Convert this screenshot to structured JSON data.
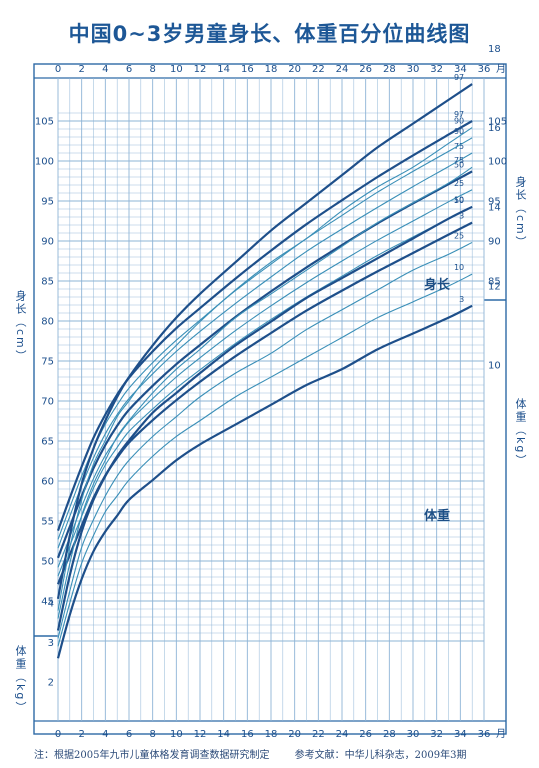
{
  "title": "中国0~3岁男童身长、体重百分位曲线图",
  "note": {
    "source": "注：根据2005年九市儿童体格发育调查数据研究制定",
    "reference": "参考文献：中华儿科杂志，2009年3期"
  },
  "axis_labels": {
    "height_left": "身长（cm）",
    "height_right": "身长（cm）",
    "weight_left": "体重（kg）",
    "weight_right": "体重（kg）",
    "month_unit": "月"
  },
  "curve_labels": {
    "height": "身长",
    "weight": "体重"
  },
  "chart_data": {
    "type": "line",
    "x_ticks": [
      0,
      2,
      4,
      6,
      8,
      10,
      12,
      14,
      16,
      18,
      20,
      22,
      24,
      26,
      28,
      30,
      32,
      34,
      36
    ],
    "xlim": [
      0,
      36
    ],
    "height_axis": {
      "unit": "cm",
      "ylim": [
        40,
        106
      ],
      "ticks": [
        45,
        50,
        55,
        60,
        65,
        70,
        75,
        80,
        85,
        90,
        95,
        100,
        105
      ]
    },
    "weight_axis": {
      "unit": "kg",
      "ylim": [
        1,
        22
      ],
      "ticks_left": [
        2,
        3,
        4
      ],
      "ticks_right": [
        10,
        12,
        14,
        16,
        18,
        20
      ]
    },
    "x": [
      0,
      1,
      2,
      3,
      4,
      5,
      6,
      8,
      10,
      12,
      15,
      18,
      21,
      24,
      27,
      30,
      33,
      35
    ],
    "height_series": [
      {
        "name": "3",
        "values": [
          47.1,
          50.8,
          54.4,
          57.9,
          60.7,
          62.9,
          64.8,
          67.6,
          70.1,
          72.4,
          75.6,
          78.5,
          81.3,
          83.8,
          86.2,
          88.5,
          90.8,
          92.3
        ]
      },
      {
        "name": "10",
        "values": [
          48.1,
          51.9,
          55.6,
          59.1,
          62.0,
          64.2,
          66.2,
          69.0,
          71.6,
          73.9,
          77.2,
          80.2,
          83.0,
          85.6,
          88.2,
          90.5,
          92.8,
          94.3
        ]
      },
      {
        "name": "25",
        "values": [
          49.2,
          53.0,
          56.8,
          60.3,
          63.2,
          65.4,
          67.4,
          70.3,
          73.0,
          75.4,
          78.8,
          81.9,
          84.8,
          87.5,
          90.1,
          92.5,
          94.9,
          96.4
        ]
      },
      {
        "name": "50",
        "values": [
          50.4,
          54.3,
          58.1,
          61.6,
          64.5,
          66.9,
          68.9,
          71.9,
          74.6,
          77.0,
          80.5,
          83.7,
          86.7,
          89.5,
          92.2,
          94.7,
          97.1,
          98.7
        ]
      },
      {
        "name": "75",
        "values": [
          51.6,
          55.6,
          59.4,
          62.9,
          65.9,
          68.3,
          70.3,
          73.4,
          76.2,
          78.7,
          82.2,
          85.5,
          88.7,
          91.5,
          94.2,
          96.8,
          99.3,
          101.0
        ]
      },
      {
        "name": "90",
        "values": [
          52.7,
          56.7,
          60.6,
          64.1,
          67.1,
          69.5,
          71.6,
          74.8,
          77.6,
          80.1,
          83.8,
          87.1,
          90.3,
          93.2,
          96.1,
          98.7,
          101.2,
          102.9
        ]
      },
      {
        "name": "97",
        "values": [
          53.8,
          57.9,
          61.8,
          65.4,
          68.3,
          70.8,
          72.9,
          76.2,
          79.1,
          81.6,
          85.3,
          88.8,
          92.1,
          95.1,
          98.0,
          100.7,
          103.3,
          105.0
        ]
      }
    ],
    "weight_series": [
      {
        "name": "3",
        "values": [
          2.6,
          3.7,
          4.6,
          5.3,
          5.8,
          6.2,
          6.6,
          7.1,
          7.6,
          8.0,
          8.5,
          9.0,
          9.5,
          9.9,
          10.4,
          10.8,
          11.2,
          11.5
        ]
      },
      {
        "name": "10",
        "values": [
          2.9,
          4.0,
          5.0,
          5.7,
          6.3,
          6.7,
          7.1,
          7.7,
          8.2,
          8.6,
          9.2,
          9.7,
          10.2,
          10.7,
          11.2,
          11.6,
          12.0,
          12.3
        ]
      },
      {
        "name": "25",
        "values": [
          3.1,
          4.3,
          5.4,
          6.1,
          6.7,
          7.2,
          7.6,
          8.2,
          8.7,
          9.2,
          9.8,
          10.3,
          10.9,
          11.4,
          11.9,
          12.4,
          12.8,
          13.1
        ]
      },
      {
        "name": "50",
        "values": [
          3.3,
          4.7,
          5.8,
          6.6,
          7.2,
          7.7,
          8.1,
          8.8,
          9.3,
          9.8,
          10.5,
          11.1,
          11.7,
          12.2,
          12.7,
          13.2,
          13.7,
          14.0
        ]
      },
      {
        "name": "75",
        "values": [
          3.6,
          5.0,
          6.2,
          7.0,
          7.6,
          8.2,
          8.6,
          9.3,
          9.9,
          10.4,
          11.2,
          11.8,
          12.4,
          13.0,
          13.6,
          14.1,
          14.6,
          15.0
        ]
      },
      {
        "name": "90",
        "values": [
          3.8,
          5.4,
          6.6,
          7.5,
          8.1,
          8.7,
          9.1,
          9.9,
          10.5,
          11.1,
          11.9,
          12.6,
          13.2,
          13.9,
          14.5,
          15.0,
          15.6,
          16.0
        ]
      },
      {
        "name": "97",
        "values": [
          4.1,
          5.7,
          7.0,
          7.9,
          8.6,
          9.2,
          9.7,
          10.5,
          11.2,
          11.8,
          12.6,
          13.4,
          14.1,
          14.8,
          15.5,
          16.1,
          16.7,
          17.1
        ]
      }
    ],
    "colors": {
      "major_curve": "#1e4f8a",
      "minor_curve": "#3a8fb7",
      "grid": "#8eb4d6",
      "frame": "#2d6aa6"
    }
  }
}
